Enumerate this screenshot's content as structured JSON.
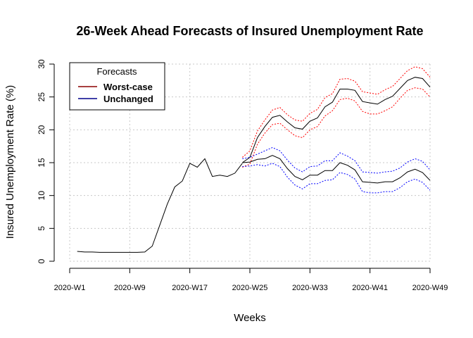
{
  "chart_data": {
    "type": "line",
    "title": "26-Week Ahead Forecasts of Insured Unemployment Rate",
    "xlabel": "Weeks",
    "ylabel": "Insured Unemployment Rate (%)",
    "ylim": [
      0,
      30
    ],
    "yticks": [
      0,
      5,
      10,
      15,
      20,
      25,
      30
    ],
    "xlim": [
      1,
      49
    ],
    "xticks": [
      {
        "week": 1,
        "label": "2020-W1"
      },
      {
        "week": 9,
        "label": "2020-W9"
      },
      {
        "week": 17,
        "label": "2020-W17"
      },
      {
        "week": 25,
        "label": "2020-W25"
      },
      {
        "week": 33,
        "label": "2020-W33"
      },
      {
        "week": 41,
        "label": "2020-W41"
      },
      {
        "week": 49,
        "label": "2020-W49"
      }
    ],
    "grid": true,
    "legend": {
      "title": "Forecasts",
      "position": "top-left",
      "entries": [
        {
          "label": "Worst-case",
          "color": "#8b0000"
        },
        {
          "label": "Unchanged",
          "color": "#00008b"
        }
      ]
    },
    "history": {
      "color": "#000000",
      "x": [
        2,
        3,
        4,
        5,
        6,
        7,
        8,
        9,
        10,
        11,
        12,
        13,
        14,
        15,
        16,
        17,
        18,
        19,
        20,
        21,
        22,
        23,
        24
      ],
      "y": [
        1.5,
        1.4,
        1.4,
        1.35,
        1.35,
        1.35,
        1.35,
        1.35,
        1.35,
        1.4,
        2.3,
        5.5,
        8.7,
        11.3,
        12.2,
        14.9,
        14.3,
        15.6,
        12.9,
        13.1,
        12.9,
        13.4,
        14.9
      ]
    },
    "forecast_x": [
      24,
      25,
      26,
      27,
      28,
      29,
      30,
      31,
      32,
      33,
      34,
      35,
      36,
      37,
      38,
      39,
      40,
      41,
      42,
      43,
      44,
      45,
      46,
      47,
      48,
      49
    ],
    "series": [
      {
        "name": "Worst-case",
        "color": "#8b0000",
        "band_color": "#ff0000",
        "values": [
          15.0,
          15.8,
          18.8,
          20.5,
          21.9,
          22.2,
          21.2,
          20.3,
          20.1,
          21.3,
          21.8,
          23.5,
          24.2,
          26.2,
          26.2,
          26.0,
          24.3,
          24.1,
          23.9,
          24.6,
          25.1,
          26.3,
          27.5,
          28.0,
          27.8,
          26.5
        ],
        "upper": [
          15.8,
          16.8,
          19.8,
          21.5,
          23.0,
          23.4,
          22.3,
          21.5,
          21.3,
          22.5,
          23.1,
          24.9,
          25.5,
          27.7,
          27.8,
          27.4,
          25.8,
          25.6,
          25.4,
          26.1,
          26.6,
          27.8,
          29.0,
          29.6,
          29.3,
          28.0
        ],
        "lower": [
          14.3,
          14.8,
          17.8,
          19.5,
          20.8,
          21.0,
          20.0,
          19.1,
          18.8,
          20.0,
          20.5,
          22.1,
          22.9,
          24.6,
          24.8,
          24.4,
          22.8,
          22.4,
          22.4,
          22.9,
          23.5,
          24.8,
          26.0,
          26.4,
          26.2,
          25.0
        ]
      },
      {
        "name": "Unchanged",
        "color": "#00008b",
        "band_color": "#0000ff",
        "values": [
          15.0,
          15.1,
          15.5,
          15.6,
          16.1,
          15.6,
          14.1,
          12.9,
          12.4,
          13.1,
          13.1,
          13.8,
          13.8,
          15.0,
          14.6,
          13.9,
          12.1,
          12.0,
          11.9,
          12.1,
          12.1,
          12.7,
          13.6,
          14.0,
          13.5,
          12.3
        ],
        "upper": [
          15.6,
          15.8,
          16.3,
          16.8,
          17.3,
          16.8,
          15.4,
          14.2,
          13.6,
          14.4,
          14.5,
          15.3,
          15.3,
          16.5,
          16.0,
          15.3,
          13.6,
          13.5,
          13.4,
          13.6,
          13.7,
          14.2,
          15.1,
          15.6,
          15.2,
          13.9
        ],
        "lower": [
          14.4,
          14.5,
          14.7,
          14.5,
          14.9,
          14.4,
          12.8,
          11.6,
          11.0,
          11.8,
          11.8,
          12.3,
          12.4,
          13.5,
          13.2,
          12.5,
          10.6,
          10.4,
          10.4,
          10.6,
          10.6,
          11.2,
          12.1,
          12.5,
          12.0,
          10.8
        ]
      }
    ]
  }
}
